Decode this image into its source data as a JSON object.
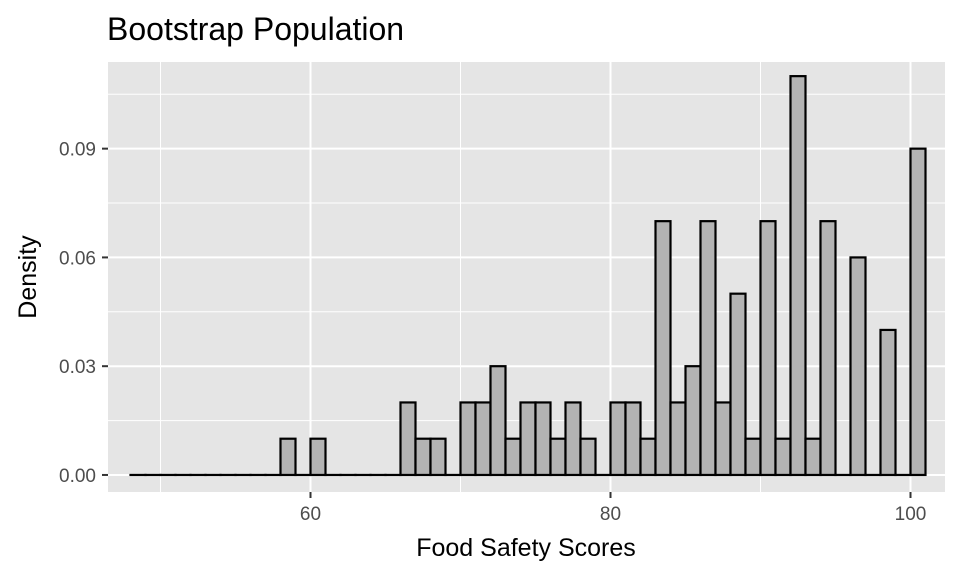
{
  "chart_data": {
    "type": "bar",
    "title": "Bootstrap Population",
    "xlabel": "Food Safety Scores",
    "ylabel": "Density",
    "xlim": [
      46.5,
      102.3
    ],
    "ylim": [
      -0.0047,
      0.1139
    ],
    "x_ticks": [
      60,
      80,
      100
    ],
    "x_tick_labels": [
      "60",
      "80",
      "100"
    ],
    "y_ticks": [
      0.0,
      0.03,
      0.06,
      0.09
    ],
    "y_tick_labels": [
      "0.00",
      "0.03",
      "0.06",
      "0.09"
    ],
    "bin_width": 1,
    "bin_starts": [
      48,
      49,
      50,
      51,
      52,
      53,
      54,
      55,
      56,
      57,
      58,
      59,
      60,
      61,
      62,
      63,
      64,
      65,
      66,
      67,
      68,
      69,
      70,
      71,
      72,
      73,
      74,
      75,
      76,
      77,
      78,
      79,
      80,
      81,
      82,
      83,
      84,
      85,
      86,
      87,
      88,
      89,
      90,
      91,
      92,
      93,
      94,
      95,
      96,
      97,
      98,
      99,
      100
    ],
    "values": [
      0,
      0,
      0,
      0,
      0,
      0,
      0,
      0,
      0,
      0,
      0.01,
      0,
      0.01,
      0,
      0,
      0,
      0,
      0,
      0.02,
      0.01,
      0.01,
      0,
      0.02,
      0.02,
      0.03,
      0.01,
      0.02,
      0.02,
      0.01,
      0.02,
      0.01,
      0,
      0.02,
      0.02,
      0.01,
      0.07,
      0.02,
      0.03,
      0.07,
      0.02,
      0.05,
      0.01,
      0.07,
      0.01,
      0.11,
      0.01,
      0.07,
      0,
      0.06,
      0,
      0.04,
      0,
      0.09
    ],
    "grid": true,
    "legend": "none",
    "colors": {
      "panel_background": "#e5e5e5",
      "grid": "#ffffff",
      "bar_fill": "#b3b3b3",
      "bar_outline": "#000000",
      "tick_text": "#4d4d4d"
    }
  }
}
